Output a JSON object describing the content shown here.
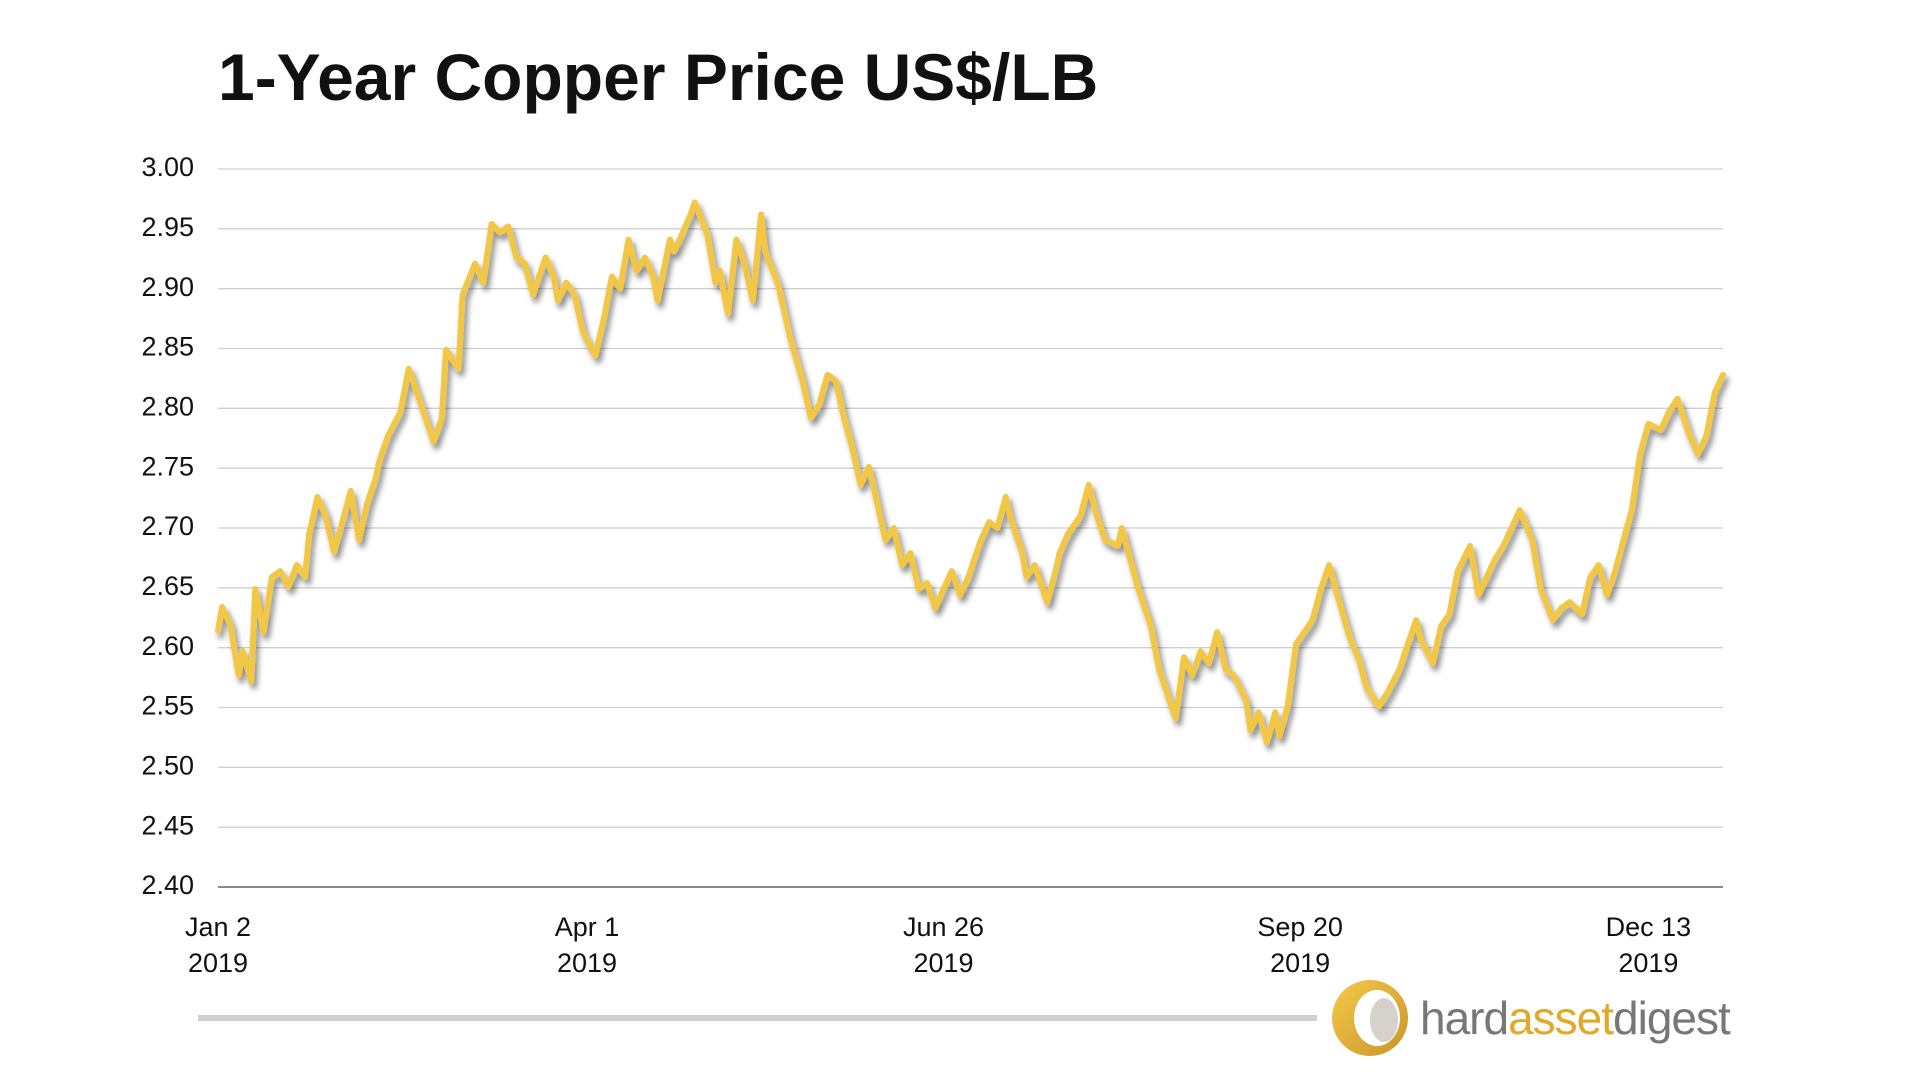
{
  "chart_data": {
    "type": "line",
    "title": "1-Year Copper Price US$/LB",
    "x": [
      "2019-01-02",
      "2019-01-03",
      "2019-01-05",
      "2019-01-07",
      "2019-01-08",
      "2019-01-10",
      "2019-01-11",
      "2019-01-13",
      "2019-01-15",
      "2019-01-17",
      "2019-01-19",
      "2019-01-21",
      "2019-01-23",
      "2019-01-24",
      "2019-01-26",
      "2019-01-28",
      "2019-01-30",
      "2019-02-01",
      "2019-02-03",
      "2019-02-05",
      "2019-02-07",
      "2019-02-09",
      "2019-02-10",
      "2019-02-12",
      "2019-02-15",
      "2019-02-17",
      "2019-02-20",
      "2019-02-23",
      "2019-02-25",
      "2019-02-26",
      "2019-03-01",
      "2019-03-02",
      "2019-03-05",
      "2019-03-07",
      "2019-03-09",
      "2019-03-11",
      "2019-03-13",
      "2019-03-15",
      "2019-03-17",
      "2019-03-19",
      "2019-03-22",
      "2019-03-24",
      "2019-03-25",
      "2019-03-27",
      "2019-03-29",
      "2019-03-31",
      "2019-04-03",
      "2019-04-05",
      "2019-04-07",
      "2019-04-09",
      "2019-04-11",
      "2019-04-13",
      "2019-04-15",
      "2019-04-17",
      "2019-04-18",
      "2019-04-21",
      "2019-04-22",
      "2019-04-24",
      "2019-04-26",
      "2019-04-27",
      "2019-04-30",
      "2019-05-02",
      "2019-05-03",
      "2019-05-05",
      "2019-05-07",
      "2019-05-09",
      "2019-05-11",
      "2019-05-13",
      "2019-05-14",
      "2019-05-17",
      "2019-05-18",
      "2019-05-20",
      "2019-05-23",
      "2019-05-25",
      "2019-05-27",
      "2019-05-29",
      "2019-05-31",
      "2019-06-02",
      "2019-06-04",
      "2019-06-06",
      "2019-06-08",
      "2019-06-10",
      "2019-06-12",
      "2019-06-14",
      "2019-06-16",
      "2019-06-18",
      "2019-06-20",
      "2019-06-22",
      "2019-06-24",
      "2019-06-26",
      "2019-06-28",
      "2019-06-30",
      "2019-07-02",
      "2019-07-05",
      "2019-07-07",
      "2019-07-09",
      "2019-07-11",
      "2019-07-12",
      "2019-07-15",
      "2019-07-16",
      "2019-07-18",
      "2019-07-21",
      "2019-07-23",
      "2019-07-24",
      "2019-07-26",
      "2019-07-29",
      "2019-07-31",
      "2019-08-02",
      "2019-08-04",
      "2019-08-07",
      "2019-08-08",
      "2019-08-10",
      "2019-08-12",
      "2019-08-15",
      "2019-08-17",
      "2019-08-20",
      "2019-08-21",
      "2019-08-23",
      "2019-08-25",
      "2019-08-27",
      "2019-08-29",
      "2019-08-31",
      "2019-09-02",
      "2019-09-04",
      "2019-09-07",
      "2019-09-08",
      "2019-09-10",
      "2019-09-12",
      "2019-09-14",
      "2019-09-15",
      "2019-09-17",
      "2019-09-19",
      "2019-09-21",
      "2019-09-23",
      "2019-09-25",
      "2019-09-27",
      "2019-09-29",
      "2019-10-02",
      "2019-10-04",
      "2019-10-06",
      "2019-10-09",
      "2019-10-11",
      "2019-10-14",
      "2019-10-16",
      "2019-10-18",
      "2019-10-19",
      "2019-10-22",
      "2019-10-24",
      "2019-10-26",
      "2019-10-28",
      "2019-10-31",
      "2019-11-02",
      "2019-11-04",
      "2019-11-06",
      "2019-11-08",
      "2019-11-10",
      "2019-11-12",
      "2019-11-15",
      "2019-11-17",
      "2019-11-20",
      "2019-11-22",
      "2019-11-24",
      "2019-11-27",
      "2019-11-29",
      "2019-12-01",
      "2019-12-03",
      "2019-12-05",
      "2019-12-07",
      "2019-12-09",
      "2019-12-11",
      "2019-12-13",
      "2019-12-16",
      "2019-12-18",
      "2019-12-20",
      "2019-12-23",
      "2019-12-25",
      "2019-12-27",
      "2019-12-29",
      "2019-12-31"
    ],
    "series": [
      {
        "color": "#f2c744",
        "values": [
          2.614,
          2.634,
          2.619,
          2.577,
          2.597,
          2.572,
          2.649,
          2.613,
          2.659,
          2.664,
          2.651,
          2.669,
          2.659,
          2.695,
          2.726,
          2.71,
          2.68,
          2.705,
          2.731,
          2.69,
          2.721,
          2.741,
          2.757,
          2.777,
          2.797,
          2.833,
          2.803,
          2.772,
          2.792,
          2.849,
          2.833,
          2.895,
          2.921,
          2.905,
          2.954,
          2.947,
          2.952,
          2.926,
          2.921,
          2.895,
          2.926,
          2.91,
          2.89,
          2.905,
          2.895,
          2.864,
          2.844,
          2.874,
          2.91,
          2.9,
          2.941,
          2.915,
          2.926,
          2.91,
          2.89,
          2.941,
          2.931,
          2.946,
          2.962,
          2.972,
          2.946,
          2.905,
          2.915,
          2.879,
          2.941,
          2.921,
          2.89,
          2.962,
          2.931,
          2.905,
          2.89,
          2.859,
          2.823,
          2.792,
          2.803,
          2.828,
          2.823,
          2.792,
          2.767,
          2.736,
          2.751,
          2.721,
          2.69,
          2.7,
          2.669,
          2.679,
          2.649,
          2.654,
          2.633,
          2.649,
          2.664,
          2.644,
          2.659,
          2.69,
          2.705,
          2.7,
          2.726,
          2.71,
          2.679,
          2.659,
          2.669,
          2.638,
          2.664,
          2.679,
          2.695,
          2.71,
          2.736,
          2.71,
          2.69,
          2.685,
          2.7,
          2.674,
          2.649,
          2.618,
          2.582,
          2.551,
          2.541,
          2.592,
          2.577,
          2.597,
          2.587,
          2.613,
          2.582,
          2.577,
          2.556,
          2.531,
          2.546,
          2.521,
          2.546,
          2.526,
          2.551,
          2.603,
          2.613,
          2.623,
          2.649,
          2.669,
          2.644,
          2.608,
          2.592,
          2.567,
          2.551,
          2.562,
          2.582,
          2.603,
          2.623,
          2.608,
          2.587,
          2.618,
          2.628,
          2.664,
          2.685,
          2.644,
          2.659,
          2.674,
          2.685,
          2.7,
          2.715,
          2.69,
          2.649,
          2.623,
          2.633,
          2.638,
          2.628,
          2.659,
          2.669,
          2.644,
          2.664,
          2.69,
          2.715,
          2.762,
          2.787,
          2.782,
          2.797,
          2.808,
          2.777,
          2.762,
          2.777,
          2.813,
          2.828
        ]
      }
    ],
    "xlim": [
      "2019-01-02",
      "2019-12-31"
    ],
    "xticks": [
      {
        "value": "2019-01-02",
        "label": [
          "Jan 2",
          "2019"
        ]
      },
      {
        "value": "2019-04-01",
        "label": [
          "Apr 1",
          "2019"
        ]
      },
      {
        "value": "2019-06-26",
        "label": [
          "Jun 26",
          "2019"
        ]
      },
      {
        "value": "2019-09-20",
        "label": [
          "Sep 20",
          "2019"
        ]
      },
      {
        "value": "2019-12-13",
        "label": [
          "Dec 13",
          "2019"
        ]
      }
    ],
    "ylim": [
      2.4,
      3.0
    ],
    "yticks": [
      {
        "value": 2.4,
        "label": "2.40"
      },
      {
        "value": 2.45,
        "label": "2.45"
      },
      {
        "value": 2.5,
        "label": "2.50"
      },
      {
        "value": 2.55,
        "label": "2.55"
      },
      {
        "value": 2.6,
        "label": "2.60"
      },
      {
        "value": 2.65,
        "label": "2.65"
      },
      {
        "value": 2.7,
        "label": "2.70"
      },
      {
        "value": 2.75,
        "label": "2.75"
      },
      {
        "value": 2.8,
        "label": "2.80"
      },
      {
        "value": 2.85,
        "label": "2.85"
      },
      {
        "value": 2.9,
        "label": "2.90"
      },
      {
        "value": 2.95,
        "label": "2.95"
      },
      {
        "value": 3.0,
        "label": "3.00"
      }
    ],
    "grid": true
  },
  "logo": {
    "parts": [
      "hard",
      "asset",
      "digest"
    ]
  }
}
